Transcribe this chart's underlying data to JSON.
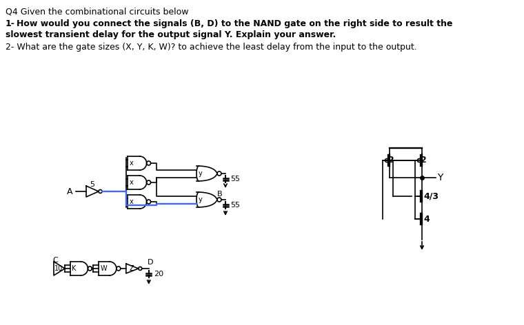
{
  "title": "Q4 Given the combinational circuits below",
  "line2a": "1- ",
  "line2b": "How would you connect the signals (B, D) to the NAND gate on the right side to result the",
  "line3": "slowest transient delay for the output signal Y. Explain your answer.",
  "line4": "2- What are the gate sizes (X, Y, K, W)? to achieve the least delay from the input to the output.",
  "bg_color": "#ffffff",
  "text_color": "#000000",
  "blue_color": "#4466ff",
  "gate_color": "#000000"
}
